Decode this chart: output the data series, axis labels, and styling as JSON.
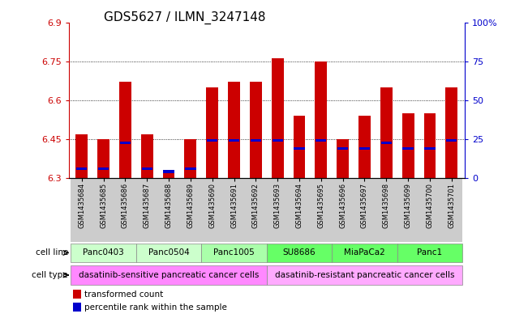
{
  "title": "GDS5627 / ILMN_3247148",
  "samples": [
    "GSM1435684",
    "GSM1435685",
    "GSM1435686",
    "GSM1435687",
    "GSM1435688",
    "GSM1435689",
    "GSM1435690",
    "GSM1435691",
    "GSM1435692",
    "GSM1435693",
    "GSM1435694",
    "GSM1435695",
    "GSM1435696",
    "GSM1435697",
    "GSM1435698",
    "GSM1435699",
    "GSM1435700",
    "GSM1435701"
  ],
  "bar_heights": [
    6.47,
    6.45,
    6.67,
    6.47,
    6.33,
    6.45,
    6.65,
    6.67,
    6.67,
    6.76,
    6.54,
    6.75,
    6.45,
    6.54,
    6.65,
    6.55,
    6.55,
    6.65
  ],
  "blue_positions": [
    6.335,
    6.335,
    6.435,
    6.335,
    6.325,
    6.335,
    6.445,
    6.445,
    6.445,
    6.445,
    6.415,
    6.445,
    6.415,
    6.415,
    6.435,
    6.415,
    6.415,
    6.445
  ],
  "ymin": 6.3,
  "ymax": 6.9,
  "yticks": [
    6.3,
    6.45,
    6.6,
    6.75,
    6.9
  ],
  "ytick_labels": [
    "6.3",
    "6.45",
    "6.6",
    "6.75",
    "6.9"
  ],
  "right_yticks": [
    0,
    25,
    50,
    75,
    100
  ],
  "right_ytick_labels": [
    "0",
    "25",
    "50",
    "75",
    "100%"
  ],
  "bar_color": "#cc0000",
  "blue_color": "#0000cc",
  "cell_lines": [
    {
      "label": "Panc0403",
      "start": 0,
      "end": 2,
      "color": "#ccffcc"
    },
    {
      "label": "Panc0504",
      "start": 3,
      "end": 5,
      "color": "#ccffcc"
    },
    {
      "label": "Panc1005",
      "start": 6,
      "end": 8,
      "color": "#aaffaa"
    },
    {
      "label": "SU8686",
      "start": 9,
      "end": 11,
      "color": "#66ff66"
    },
    {
      "label": "MiaPaCa2",
      "start": 12,
      "end": 14,
      "color": "#66ff66"
    },
    {
      "label": "Panc1",
      "start": 15,
      "end": 17,
      "color": "#66ff66"
    }
  ],
  "cell_types": [
    {
      "label": "dasatinib-sensitive pancreatic cancer cells",
      "start": 0,
      "end": 8,
      "color": "#ff88ff"
    },
    {
      "label": "dasatinib-resistant pancreatic cancer cells",
      "start": 9,
      "end": 17,
      "color": "#ffaaff"
    }
  ],
  "legend_items": [
    {
      "label": "transformed count",
      "color": "#cc0000"
    },
    {
      "label": "percentile rank within the sample",
      "color": "#0000cc"
    }
  ],
  "tick_color_left": "#cc0000",
  "tick_color_right": "#0000cc",
  "title_fontsize": 11,
  "axis_fontsize": 8,
  "sample_fontsize": 6.0,
  "bar_width": 0.55,
  "blue_bar_height": 0.01
}
